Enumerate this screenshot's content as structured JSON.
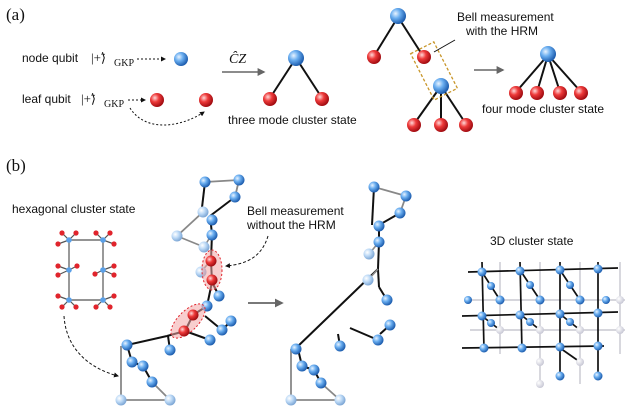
{
  "panel_a": {
    "label": "(a)",
    "node_qubit_text": "node qubit",
    "leaf_qubit_text": "leaf qubit",
    "ket_text": "|+̃⟩",
    "gkp_sub": "GKP",
    "cz_op": "ĈZ",
    "three_mode_label": "three mode cluster state",
    "bell_label_line1": "Bell measurement",
    "bell_label_line2": "with the HRM",
    "four_mode_label": "four mode cluster state"
  },
  "panel_b": {
    "label": "(b)",
    "hex_label": "hexagonal cluster state",
    "bell_label_line1": "Bell measurement",
    "bell_label_line2": "without the HRM",
    "cluster3d_label": "3D cluster state"
  },
  "colors": {
    "node_blue": "#5aa0e8",
    "leaf_red": "#e0242c",
    "highlight_orange": "#c8962a",
    "arrow_gray": "#666666"
  }
}
